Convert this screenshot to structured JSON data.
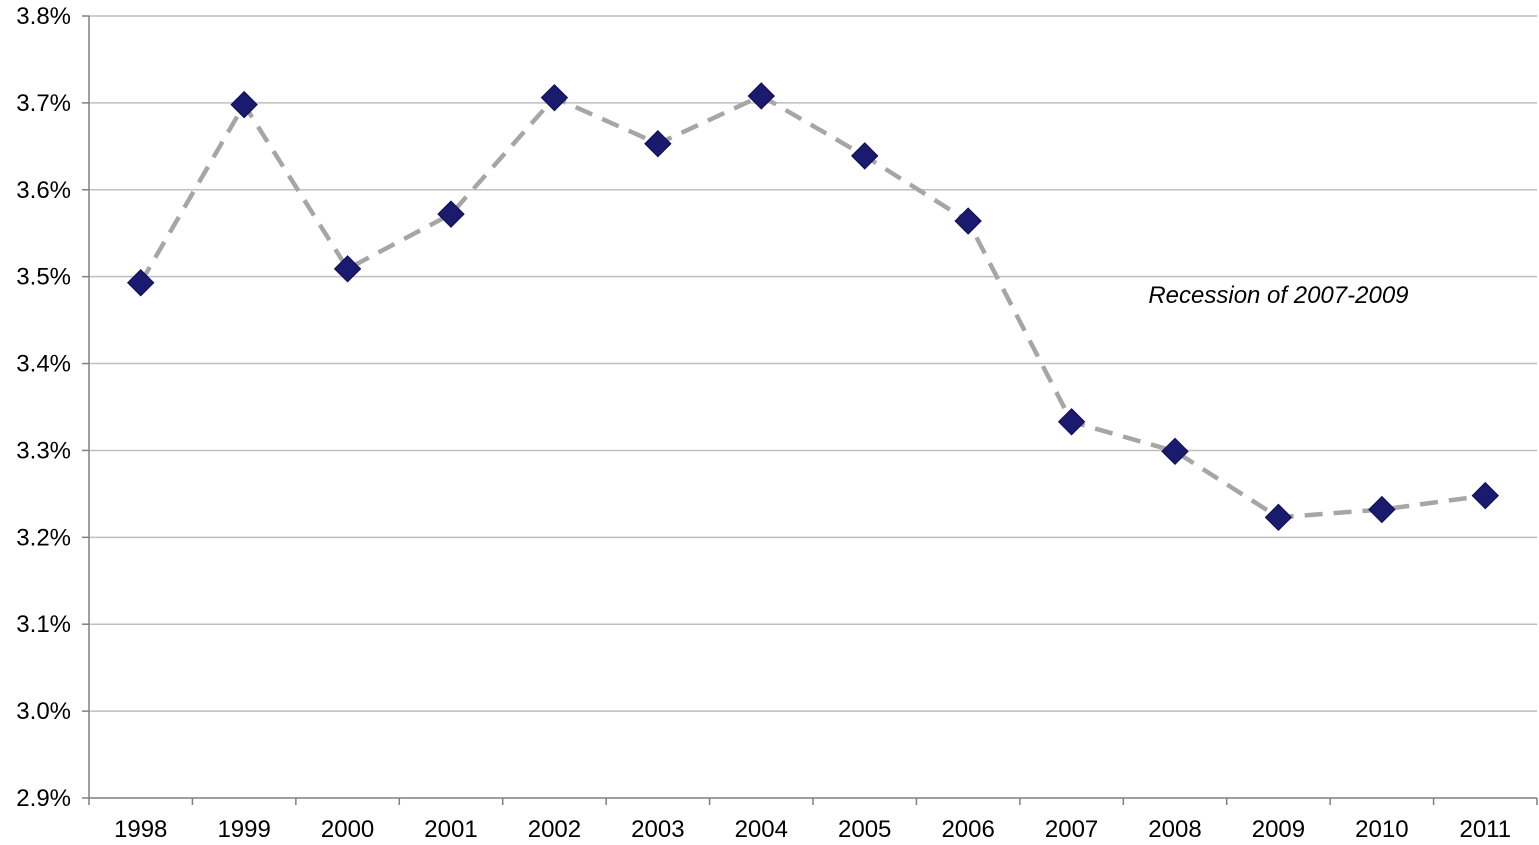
{
  "chart_data": {
    "type": "line",
    "title": "",
    "xlabel": "",
    "ylabel": "",
    "categories": [
      "1998",
      "1999",
      "2000",
      "2001",
      "2002",
      "2003",
      "2004",
      "2005",
      "2006",
      "2007",
      "2008",
      "2009",
      "2010",
      "2011"
    ],
    "series": [
      {
        "values": [
          3.493,
          3.698,
          3.509,
          3.572,
          3.706,
          3.653,
          3.708,
          3.639,
          3.564,
          3.333,
          3.299,
          3.223,
          3.232,
          3.248
        ],
        "marker": "diamond",
        "marker_color": "#1a1a6e",
        "line_color": "#a6a6a6",
        "line_style": "dashed"
      }
    ],
    "ylim": [
      2.9,
      3.8
    ],
    "y_ticks": [
      {
        "value": 2.9,
        "label": "2.9%"
      },
      {
        "value": 3.0,
        "label": "3.0%"
      },
      {
        "value": 3.1,
        "label": "3.1%"
      },
      {
        "value": 3.2,
        "label": "3.2%"
      },
      {
        "value": 3.3,
        "label": "3.3%"
      },
      {
        "value": 3.4,
        "label": "3.4%"
      },
      {
        "value": 3.5,
        "label": "3.5%"
      },
      {
        "value": 3.6,
        "label": "3.6%"
      },
      {
        "value": 3.7,
        "label": "3.7%"
      },
      {
        "value": 3.8,
        "label": "3.8%"
      }
    ],
    "grid": true,
    "grid_color": "#bfbfbf",
    "axis_color": "#808080",
    "legend": "none",
    "annotations": [
      {
        "text": "Recession of 2007-2009",
        "x": "2009",
        "y": 3.48
      }
    ]
  }
}
